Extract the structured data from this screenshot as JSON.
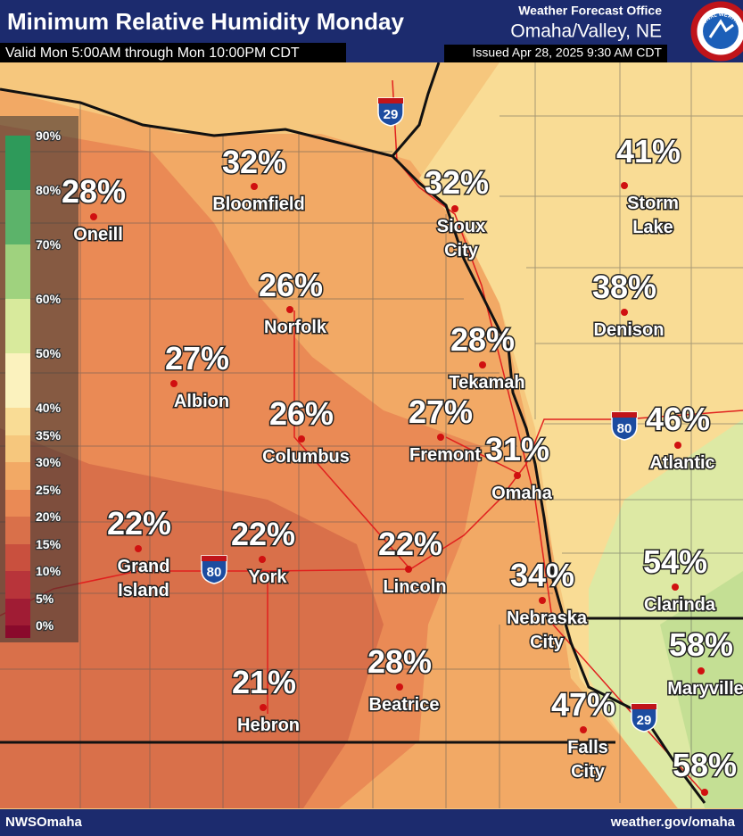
{
  "header": {
    "title": "Minimum Relative Humidity Monday",
    "subtitle": "Valid Mon 5:00AM through Mon 10:00PM CDT",
    "office": "Weather Forecast Office",
    "location": "Omaha/Valley, NE",
    "issued": "Issued Apr 28, 2025 9:30 AM CDT",
    "logo_text": "NATIONAL WEATHER SERVICE"
  },
  "legend": [
    "90%",
    "80%",
    "70%",
    "60%",
    "50%",
    "40%",
    "35%",
    "30%",
    "25%",
    "20%",
    "15%",
    "10%",
    "5%",
    "0%"
  ],
  "highways": [
    "29",
    "80",
    "80",
    "29"
  ],
  "cities": [
    {
      "name": [
        "Bloomfield"
      ],
      "value": "32%"
    },
    {
      "name": [
        "Oneill"
      ],
      "value": "28%"
    },
    {
      "name": [
        "Sioux",
        "City"
      ],
      "value": "32%"
    },
    {
      "name": [
        "Storm",
        "Lake"
      ],
      "value": "41%"
    },
    {
      "name": [
        "Norfolk"
      ],
      "value": "26%"
    },
    {
      "name": [
        "Denison"
      ],
      "value": "38%"
    },
    {
      "name": [
        "Albion"
      ],
      "value": "27%"
    },
    {
      "name": [
        "Tekamah"
      ],
      "value": "28%"
    },
    {
      "name": [
        "Columbus"
      ],
      "value": "26%"
    },
    {
      "name": [
        "Fremont"
      ],
      "value": "27%"
    },
    {
      "name": [
        "Omaha"
      ],
      "value": "31%"
    },
    {
      "name": [
        "Atlantic"
      ],
      "value": "46%"
    },
    {
      "name": [
        "Grand",
        "Island"
      ],
      "value": "22%"
    },
    {
      "name": [
        "York"
      ],
      "value": "22%"
    },
    {
      "name": [
        "Lincoln"
      ],
      "value": "22%"
    },
    {
      "name": [
        "Nebraska",
        "City"
      ],
      "value": "34%"
    },
    {
      "name": [
        "Clarinda"
      ],
      "value": "54%"
    },
    {
      "name": [
        "Maryville"
      ],
      "value": "58%"
    },
    {
      "name": [
        "Beatrice"
      ],
      "value": "28%"
    },
    {
      "name": [
        "Hebron"
      ],
      "value": "21%"
    },
    {
      "name": [
        "Falls",
        "City"
      ],
      "value": "47%"
    },
    {
      "name": [],
      "value": "58%"
    }
  ],
  "footer": {
    "left": "NWSOmaha",
    "right": "weather.gov/omaha"
  }
}
